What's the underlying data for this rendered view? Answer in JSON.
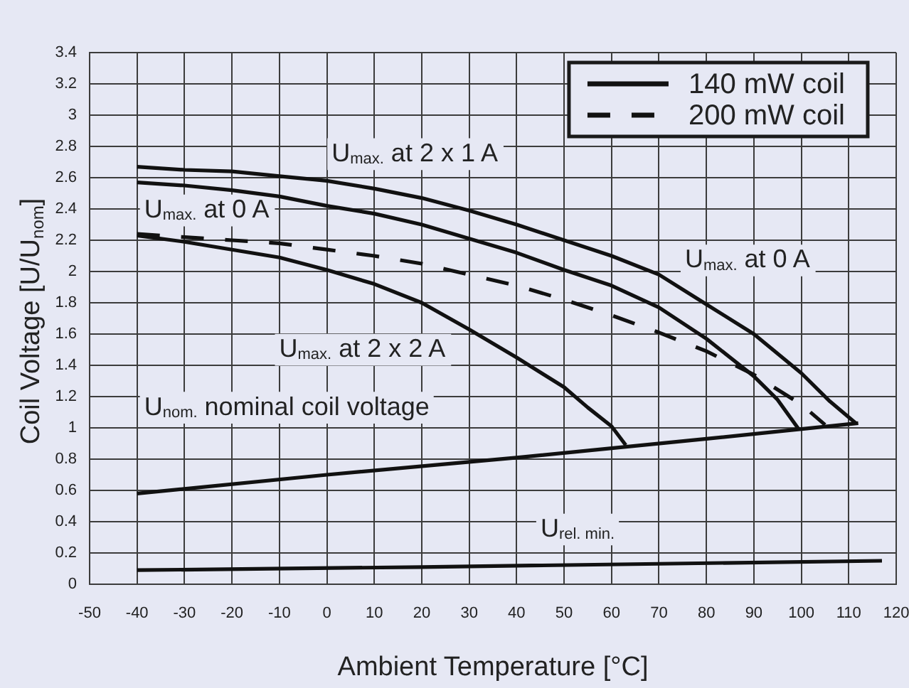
{
  "chart_data": {
    "type": "line",
    "xlabel": "Ambient Temperature [°C]",
    "ylabel": "Coil Voltage [U/U$_{nom}$]",
    "xlim": [
      -50,
      120
    ],
    "xticks": [
      -50,
      -40,
      -30,
      -20,
      -10,
      0,
      10,
      20,
      30,
      40,
      50,
      60,
      70,
      80,
      90,
      100,
      110,
      120
    ],
    "ylim": [
      0,
      3.4
    ],
    "yticks": [
      0,
      0.2,
      0.4,
      0.6,
      0.8,
      1,
      1.2,
      1.4,
      1.6,
      1.8,
      2,
      2.2,
      2.4,
      2.6,
      2.8,
      3,
      3.2,
      3.4
    ],
    "grid": true,
    "legend": "top right",
    "marker": "none",
    "series": [
      {
        "name": "140 mW coil",
        "color": "#111111",
        "line_style": "solid",
        "x": [
          -40,
          -30,
          -20,
          -10,
          0,
          10,
          20,
          30,
          40,
          50,
          60,
          70,
          80,
          90,
          100,
          106,
          111.5
        ],
        "values": [
          2.67,
          2.65,
          2.64,
          2.61,
          2.58,
          2.53,
          2.47,
          2.39,
          2.3,
          2.2,
          2.1,
          1.98,
          1.79,
          1.6,
          1.35,
          1.17,
          1.03
        ]
      },
      {
        "name": "200 mW coil",
        "color": "#111111",
        "line_style": "dashed",
        "x": [
          -40,
          -30,
          -20,
          -10,
          0,
          10,
          20,
          30,
          40,
          50,
          60,
          70,
          80,
          90,
          100,
          105
        ],
        "values": [
          2.24,
          2.22,
          2.2,
          2.18,
          2.14,
          2.1,
          2.05,
          1.98,
          1.91,
          1.82,
          1.72,
          1.61,
          1.49,
          1.34,
          1.15,
          1.02
        ]
      },
      {
        "color": "#111111",
        "line_style": "solid",
        "x": [
          -40,
          -30,
          -20,
          -10,
          0,
          10,
          20,
          30,
          40,
          50,
          60,
          70,
          80,
          90,
          95,
          99.5
        ],
        "values": [
          2.57,
          2.55,
          2.52,
          2.48,
          2.42,
          2.37,
          2.3,
          2.21,
          2.12,
          2.01,
          1.91,
          1.77,
          1.57,
          1.33,
          1.18,
          0.99
        ]
      },
      {
        "color": "#111111",
        "line_style": "solid",
        "x": [
          -40,
          -30,
          -20,
          -10,
          0,
          10,
          20,
          30,
          40,
          50,
          55,
          60,
          63
        ],
        "values": [
          2.23,
          2.19,
          2.14,
          2.09,
          2.01,
          1.92,
          1.8,
          1.63,
          1.45,
          1.26,
          1.13,
          1.01,
          0.89
        ]
      },
      {
        "color": "#111111",
        "line_style": "solid",
        "x": [
          -40,
          0,
          40,
          80,
          112
        ],
        "values": [
          0.58,
          0.7,
          0.81,
          0.93,
          1.03
        ]
      },
      {
        "color": "#111111",
        "line_style": "solid",
        "x": [
          -40,
          20,
          117
        ],
        "values": [
          0.09,
          0.11,
          0.15
        ]
      }
    ],
    "annotations": [
      "U$_{max.}$ at 2 x 1 A",
      "U$_{max.}$ at 0 A",
      "U$_{max.}$ at 0 A",
      "U$_{max.}$ at 2 x 2 A",
      "U$_{nom.}$ nominal coil voltage",
      "U$_{rel. min.}$"
    ]
  }
}
